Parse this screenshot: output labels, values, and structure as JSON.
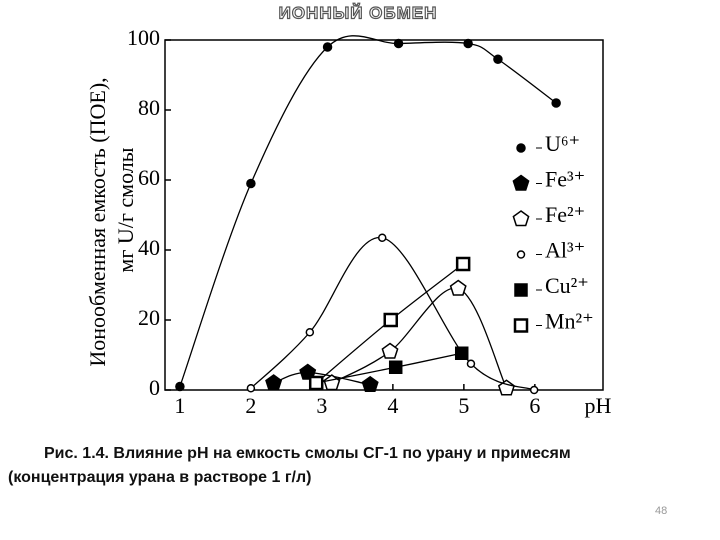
{
  "header": {
    "title": "ИОННЫЙ ОБМЕН"
  },
  "chart_data": {
    "type": "line",
    "y_label_lines": [
      "Ионообменная емкость (ПОЕ),",
      "мг U/г смолы"
    ],
    "x_label": "pH",
    "xlim": [
      0.79,
      6.96
    ],
    "xticks": [
      1,
      2,
      3,
      4,
      5,
      6
    ],
    "ylim": [
      0,
      100
    ],
    "yticks": [
      0,
      20,
      40,
      60,
      80,
      100
    ],
    "series": [
      {
        "name": "U⁶⁺",
        "marker": "circle-filled",
        "x": [
          1,
          2,
          3.08,
          4.08,
          5.06,
          5.48,
          6.3
        ],
        "values": [
          1,
          59,
          98,
          99,
          99,
          94.5,
          82
        ]
      },
      {
        "name": "Fe³⁺",
        "marker": "pentagon-filled",
        "x": [
          2.32,
          2.8,
          3.68
        ],
        "values": [
          2,
          5,
          1.5
        ]
      },
      {
        "name": "Fe²⁺",
        "marker": "pentagon-open",
        "x": [
          3.14,
          3.96,
          4.92,
          5.6
        ],
        "values": [
          2,
          11,
          29,
          0.5
        ]
      },
      {
        "name": "Al³⁺",
        "marker": "circle-open",
        "x": [
          2,
          2.83,
          3.85,
          5.1,
          5.99
        ],
        "values": [
          0.5,
          16.5,
          43.5,
          7.5,
          0
        ]
      },
      {
        "name": "Cu²⁺",
        "marker": "square-filled",
        "x": [
          2.92,
          4.04,
          4.97
        ],
        "values": [
          2,
          6.5,
          10.5
        ]
      },
      {
        "name": "Mn²⁺",
        "marker": "square-open",
        "x": [
          2.92,
          3.97,
          4.99
        ],
        "values": [
          2,
          20,
          36
        ]
      }
    ]
  },
  "caption": [
    "Рис. 1.4. Влияние pH на емкость смолы СГ-1 по урану и примесям",
    "(концентрация урана в растворе 1 г/л)"
  ],
  "page_number": "48"
}
